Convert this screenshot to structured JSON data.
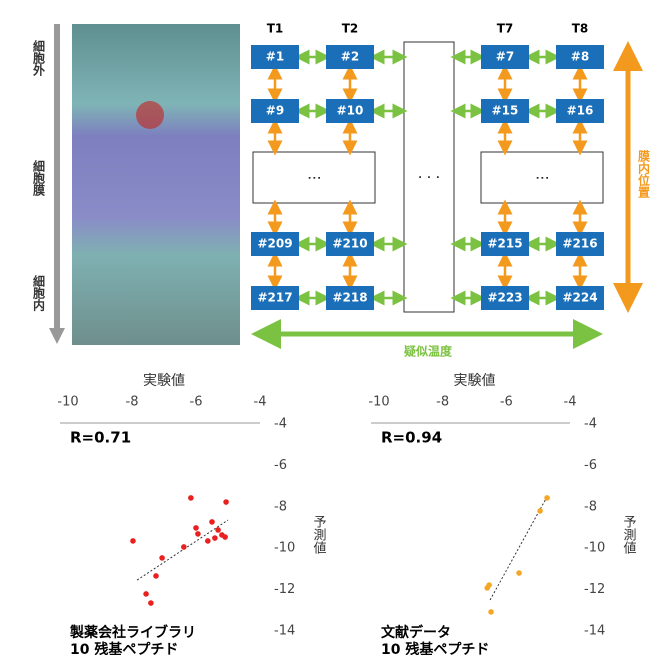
{
  "diagram": {
    "left_labels": [
      "細胞外",
      "細胞膜",
      "細胞内"
    ],
    "columns": [
      "T1",
      "T2",
      "T7",
      "T8"
    ],
    "rows": [
      [
        "#1",
        "#2",
        "#7",
        "#8"
      ],
      [
        "#9",
        "#10",
        "#15",
        "#16"
      ],
      [
        "#209",
        "#210",
        "#215",
        "#216"
      ],
      [
        "#217",
        "#218",
        "#223",
        "#224"
      ]
    ],
    "vertical_axis_label": "膜内位置",
    "horizontal_axis_label": "疑似温度"
  },
  "chart_data": [
    {
      "type": "scatter",
      "xlabel": "実験値",
      "ylabel": "予測値",
      "annotation": "R=0.71",
      "caption": [
        "製薬会社ライブラリ",
        "10 残基ペプチド"
      ],
      "xlim": [
        -10,
        -4
      ],
      "xticks": [
        -10,
        -8,
        -6,
        -4
      ],
      "ylim": [
        -14,
        -4
      ],
      "yticks": [
        -4,
        -6,
        -8,
        -10,
        -12,
        -14
      ],
      "series": [
        {
          "color": "#e8201f",
          "x": [
            -6.16,
            -5.06,
            -7.97,
            -6.0,
            -5.5,
            -5.31,
            -5.19,
            -5.41,
            -5.09,
            -5.63,
            -5.94,
            -6.38,
            -7.06,
            -7.25,
            -7.56,
            -7.41
          ],
          "values": [
            -7.57,
            -7.77,
            -9.65,
            -9.02,
            -8.73,
            -9.12,
            -9.36,
            -9.51,
            -9.46,
            -9.65,
            -9.31,
            -9.94,
            -10.47,
            -11.34,
            -12.21,
            -12.65
          ]
        }
      ],
      "trend": {
        "x": [
          -7.84,
          -5.0
        ],
        "values": [
          -11.54,
          -8.64
        ]
      }
    },
    {
      "type": "scatter",
      "xlabel": "実験値",
      "ylabel": "予測値",
      "annotation": "R=0.94",
      "caption": [
        "文献データ",
        "10 残基ペプチド"
      ],
      "xlim": [
        -10,
        -4
      ],
      "xticks": [
        -10,
        -8,
        -6,
        -4
      ],
      "ylim": [
        -14,
        -4
      ],
      "yticks": [
        -4,
        -6,
        -8,
        -10,
        -12,
        -14
      ],
      "series": [
        {
          "color": "#f5a623",
          "x": [
            -4.72,
            -4.94,
            -5.6,
            -6.54,
            -6.6,
            -6.48
          ],
          "values": [
            -7.57,
            -8.2,
            -11.2,
            -11.78,
            -11.92,
            -13.08
          ]
        }
      ],
      "trend": {
        "x": [
          -6.51,
          -4.69
        ],
        "values": [
          -12.5,
          -7.43
        ]
      }
    }
  ]
}
